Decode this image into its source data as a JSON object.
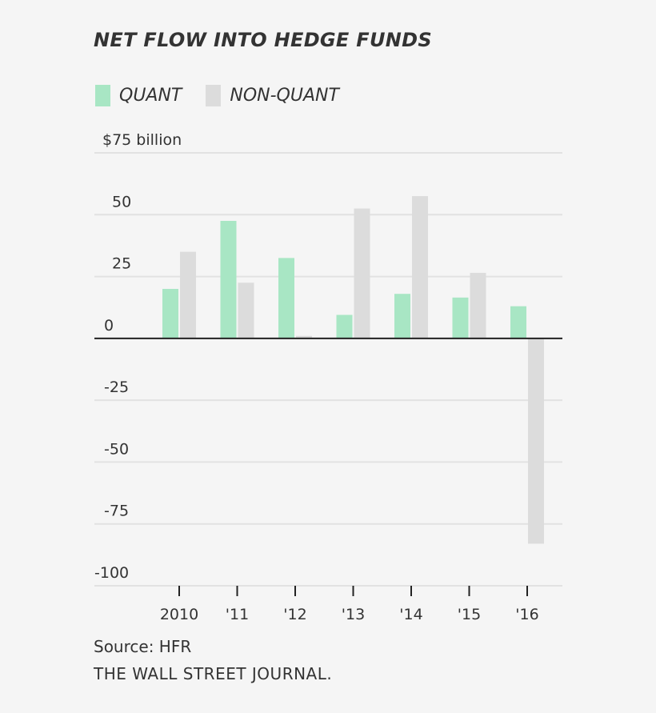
{
  "chart_data": {
    "type": "bar",
    "title": "NET FLOW INTO HEDGE FUNDS",
    "categories": [
      "2010",
      "'11",
      "'12",
      "'13",
      "'14",
      "'15",
      "'16"
    ],
    "series": [
      {
        "name": "QUANT",
        "color": "#a8e6c4",
        "values": [
          20,
          47.5,
          32.5,
          9.5,
          18,
          16.5,
          13
        ]
      },
      {
        "name": "NON-QUANT",
        "color": "#dcdcdc",
        "values": [
          35,
          22.5,
          1,
          52.5,
          57.5,
          26.5,
          -83
        ]
      }
    ],
    "y_ticks": [
      75,
      50,
      25,
      0,
      -25,
      -50,
      -75,
      -100
    ],
    "y_tick_labels": [
      "$75 billion",
      "50",
      "25",
      "0",
      "-25",
      "-50",
      "-75",
      "-100"
    ],
    "ylim": [
      -100,
      75
    ],
    "grid": true,
    "legend": "top-left",
    "xlabel": "",
    "ylabel": ""
  },
  "source": "Source: HFR",
  "publisher": "THE WALL STREET JOURNAL."
}
